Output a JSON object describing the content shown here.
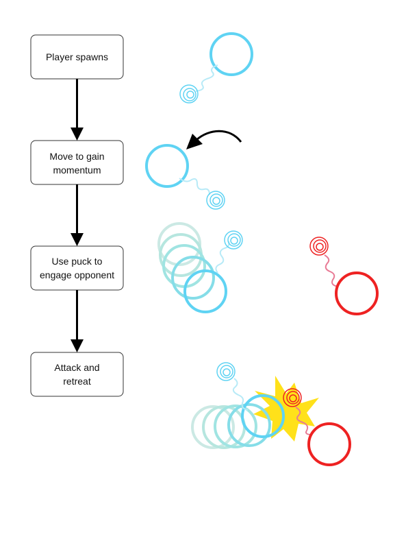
{
  "steps": [
    {
      "line1": "Player spawns",
      "line2": ""
    },
    {
      "line1": "Move to gain",
      "line2": "momentum"
    },
    {
      "line1": "Use puck to",
      "line2": "engage opponent"
    },
    {
      "line1": "Attack and",
      "line2": "retreat"
    }
  ],
  "colors": {
    "player": "#5fd3f3",
    "player_fade": "#b6e6df",
    "opponent": "#ee2222",
    "opponent_tether": "#e87a95",
    "impact": "#ffe11a",
    "box_stroke": "#333333",
    "arrow": "#000000"
  }
}
